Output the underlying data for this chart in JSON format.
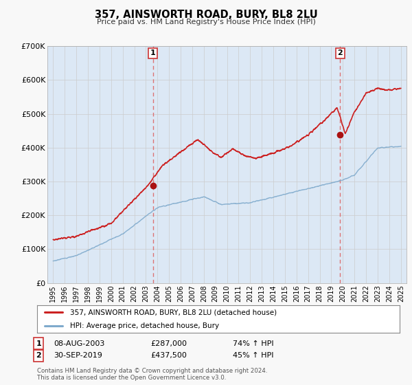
{
  "title": "357, AINSWORTH ROAD, BURY, BL8 2LU",
  "subtitle": "Price paid vs. HM Land Registry's House Price Index (HPI)",
  "bg_color": "#f8f8f8",
  "plot_bg_color": "#dce8f5",
  "sale1_date": 2003.6,
  "sale1_price": 287000,
  "sale2_date": 2019.75,
  "sale2_price": 437500,
  "hpi_line_color": "#7faacc",
  "price_line_color": "#cc2222",
  "marker_color": "#aa1111",
  "vline_color": "#dd6666",
  "ylim_max": 700000,
  "ylabel_ticks": [
    0,
    100000,
    200000,
    300000,
    400000,
    500000,
    600000,
    700000
  ],
  "ylabel_labels": [
    "£0",
    "£100K",
    "£200K",
    "£300K",
    "£400K",
    "£500K",
    "£600K",
    "£700K"
  ],
  "xlim_start": 1994.5,
  "xlim_end": 2025.5,
  "xtick_years": [
    1995,
    1996,
    1997,
    1998,
    1999,
    2000,
    2001,
    2002,
    2003,
    2004,
    2005,
    2006,
    2007,
    2008,
    2009,
    2010,
    2011,
    2012,
    2013,
    2014,
    2015,
    2016,
    2017,
    2018,
    2019,
    2020,
    2021,
    2022,
    2023,
    2024,
    2025
  ],
  "legend_label_price": "357, AINSWORTH ROAD, BURY, BL8 2LU (detached house)",
  "legend_label_hpi": "HPI: Average price, detached house, Bury",
  "sale1_date_str": "08-AUG-2003",
  "sale1_price_str": "£287,000",
  "sale1_hpi": "74% ↑ HPI",
  "sale2_date_str": "30-SEP-2019",
  "sale2_price_str": "£437,500",
  "sale2_hpi": "45% ↑ HPI",
  "footer_line1": "Contains HM Land Registry data © Crown copyright and database right 2024.",
  "footer_line2": "This data is licensed under the Open Government Licence v3.0."
}
